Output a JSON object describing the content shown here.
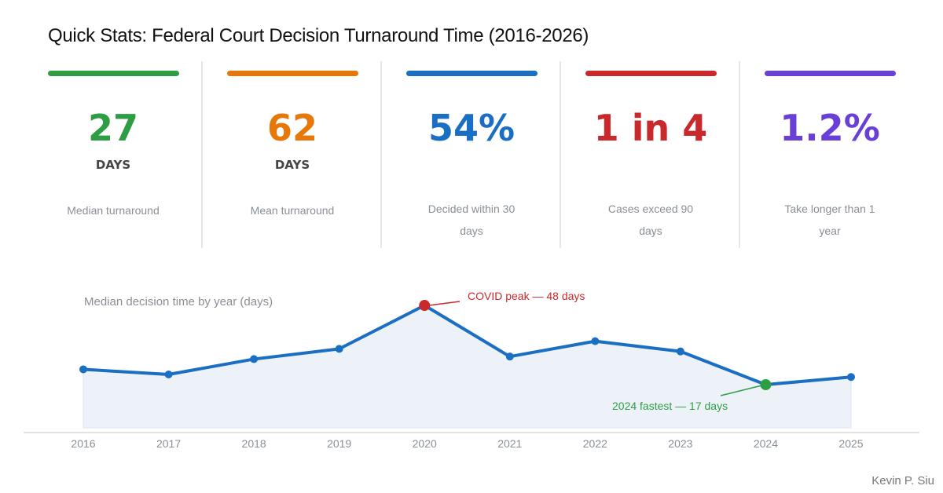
{
  "title": "Quick Stats: Federal Court Decision Turnaround Time  (2016-2026)",
  "stats": [
    {
      "value": "27",
      "unit": "DAYS",
      "label": "Median turnaround",
      "color": "#2e9e44"
    },
    {
      "value": "62",
      "unit": "DAYS",
      "label": "Mean turnaround",
      "color": "#e8770a"
    },
    {
      "value": "54%",
      "unit": "",
      "label": "Decided within 30 days",
      "color": "#1a6fc2"
    },
    {
      "value": "1 in 4",
      "unit": "",
      "label": "Cases exceed 90 days",
      "color": "#c9292b"
    },
    {
      "value": "1.2%",
      "unit": "",
      "label": "Take longer than 1 year",
      "color": "#6a3fd8"
    }
  ],
  "chart_data": {
    "type": "area",
    "title": "Median decision time by year (days)",
    "x": [
      "2016",
      "2017",
      "2018",
      "2019",
      "2020",
      "2021",
      "2022",
      "2023",
      "2024",
      "2025"
    ],
    "series": [
      {
        "values": [
          23,
          21,
          27,
          31,
          48,
          28,
          34,
          30,
          17,
          20
        ],
        "color": "#1a6fc2"
      }
    ],
    "ylim": [
      0,
      50
    ],
    "grid": false,
    "annotations": [
      {
        "x": "2020",
        "text": "COVID peak — 48 days",
        "color": "#c9292b"
      },
      {
        "x": "2024",
        "text": "2024 fastest — 17 days",
        "color": "#2e9e44"
      }
    ]
  },
  "credit": "Kevin P. Siu"
}
